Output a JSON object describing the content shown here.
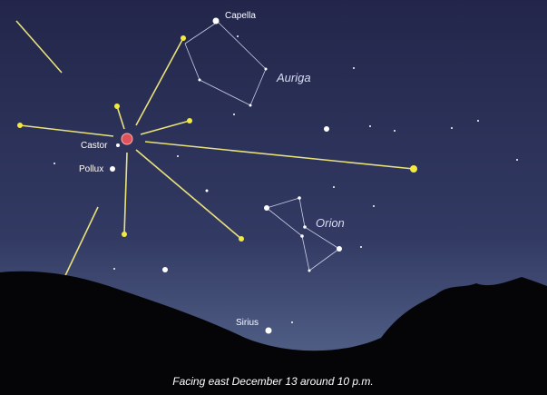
{
  "labels": {
    "capella": "Capella",
    "auriga": "Auriga",
    "castor": "Castor",
    "pollux": "Pollux",
    "orion": "Orion",
    "sirius": "Sirius"
  },
  "caption": "Facing east December 13 around 10 p.m."
}
